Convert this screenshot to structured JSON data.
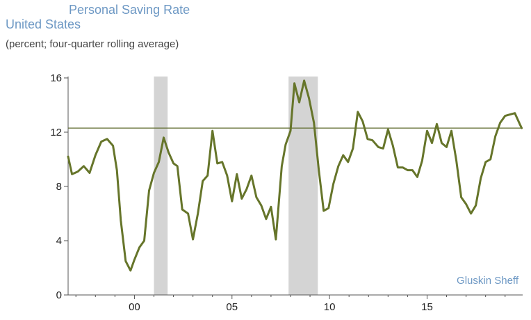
{
  "chart_data": {
    "type": "line",
    "title": "Personal Saving Rate",
    "subtitle": "United States",
    "unit_note": "(percent; four-quarter rolling average)",
    "source": "Gluskin Sheff",
    "xlabel": "",
    "ylabel": "",
    "ylim": [
      0,
      16
    ],
    "yticks": [
      0,
      4,
      8,
      12,
      16
    ],
    "xlim": [
      1996.6,
      2019.9
    ],
    "xticks": [
      {
        "value": 2000,
        "label": "00"
      },
      {
        "value": 2005,
        "label": "05"
      },
      {
        "value": 2010,
        "label": "10"
      },
      {
        "value": 2015,
        "label": "15"
      }
    ],
    "grid": false,
    "legend": "none",
    "reference_line": 12.3,
    "recessions": [
      [
        2001.0,
        2001.7
      ],
      [
        2007.9,
        2009.4
      ]
    ],
    "colors": {
      "line": "#66752a",
      "recession": "#d4d4d4",
      "reference": "#5f6b2e",
      "axis": "#555555"
    },
    "series": [
      {
        "x": [
          1996.6,
          1996.8,
          1997.1,
          1997.4,
          1997.7,
          1998.0,
          1998.3,
          1998.6,
          1998.9,
          1999.1,
          1999.3,
          1999.55,
          1999.8,
          2000.0,
          2000.25,
          2000.5,
          2000.75,
          2001.0,
          2001.25,
          2001.5,
          2001.75,
          2002.0,
          2002.2,
          2002.45,
          2002.75,
          2003.0,
          2003.25,
          2003.5,
          2003.75,
          2004.0,
          2004.25,
          2004.5,
          2004.75,
          2005.0,
          2005.25,
          2005.5,
          2005.75,
          2006.0,
          2006.25,
          2006.5,
          2006.75,
          2007.0,
          2007.25,
          2007.55,
          2007.75,
          2008.0,
          2008.2,
          2008.45,
          2008.7,
          2008.95,
          2009.2,
          2009.45,
          2009.7,
          2009.95,
          2010.2,
          2010.45,
          2010.7,
          2010.95,
          2011.2,
          2011.45,
          2011.7,
          2011.95,
          2012.2,
          2012.5,
          2012.75,
          2013.0,
          2013.25,
          2013.5,
          2013.75,
          2014.0,
          2014.25,
          2014.5,
          2014.75,
          2015.0,
          2015.25,
          2015.5,
          2015.75,
          2016.0,
          2016.25,
          2016.5,
          2016.75,
          2017.0,
          2017.25,
          2017.5,
          2017.75,
          2018.0,
          2018.25,
          2018.5,
          2018.75,
          2019.0,
          2019.25,
          2019.5,
          2019.75,
          2019.85
        ],
        "y": [
          10.2,
          8.9,
          9.1,
          9.5,
          9.0,
          10.3,
          11.3,
          11.5,
          11.0,
          9.2,
          5.5,
          2.5,
          1.8,
          2.6,
          3.5,
          4.0,
          7.7,
          9.0,
          9.8,
          11.6,
          10.5,
          9.7,
          9.5,
          6.3,
          6.0,
          4.1,
          6.0,
          8.4,
          8.8,
          12.1,
          9.7,
          9.8,
          8.8,
          6.9,
          8.9,
          7.1,
          7.8,
          8.8,
          7.2,
          6.6,
          5.6,
          6.5,
          4.1,
          9.5,
          11.1,
          12.1,
          15.6,
          14.2,
          15.8,
          14.5,
          12.7,
          9.2,
          6.2,
          6.4,
          8.2,
          9.5,
          10.3,
          9.8,
          10.8,
          13.5,
          12.8,
          11.5,
          11.4,
          10.9,
          10.8,
          12.2,
          11.0,
          9.4,
          9.4,
          9.2,
          9.2,
          8.7,
          9.9,
          12.1,
          11.2,
          12.6,
          11.2,
          10.9,
          12.1,
          9.9,
          7.2,
          6.7,
          6.0,
          6.6,
          8.6,
          9.8,
          10.0,
          11.7,
          12.7,
          13.2,
          13.3,
          13.4,
          12.6,
          12.3
        ]
      }
    ]
  }
}
